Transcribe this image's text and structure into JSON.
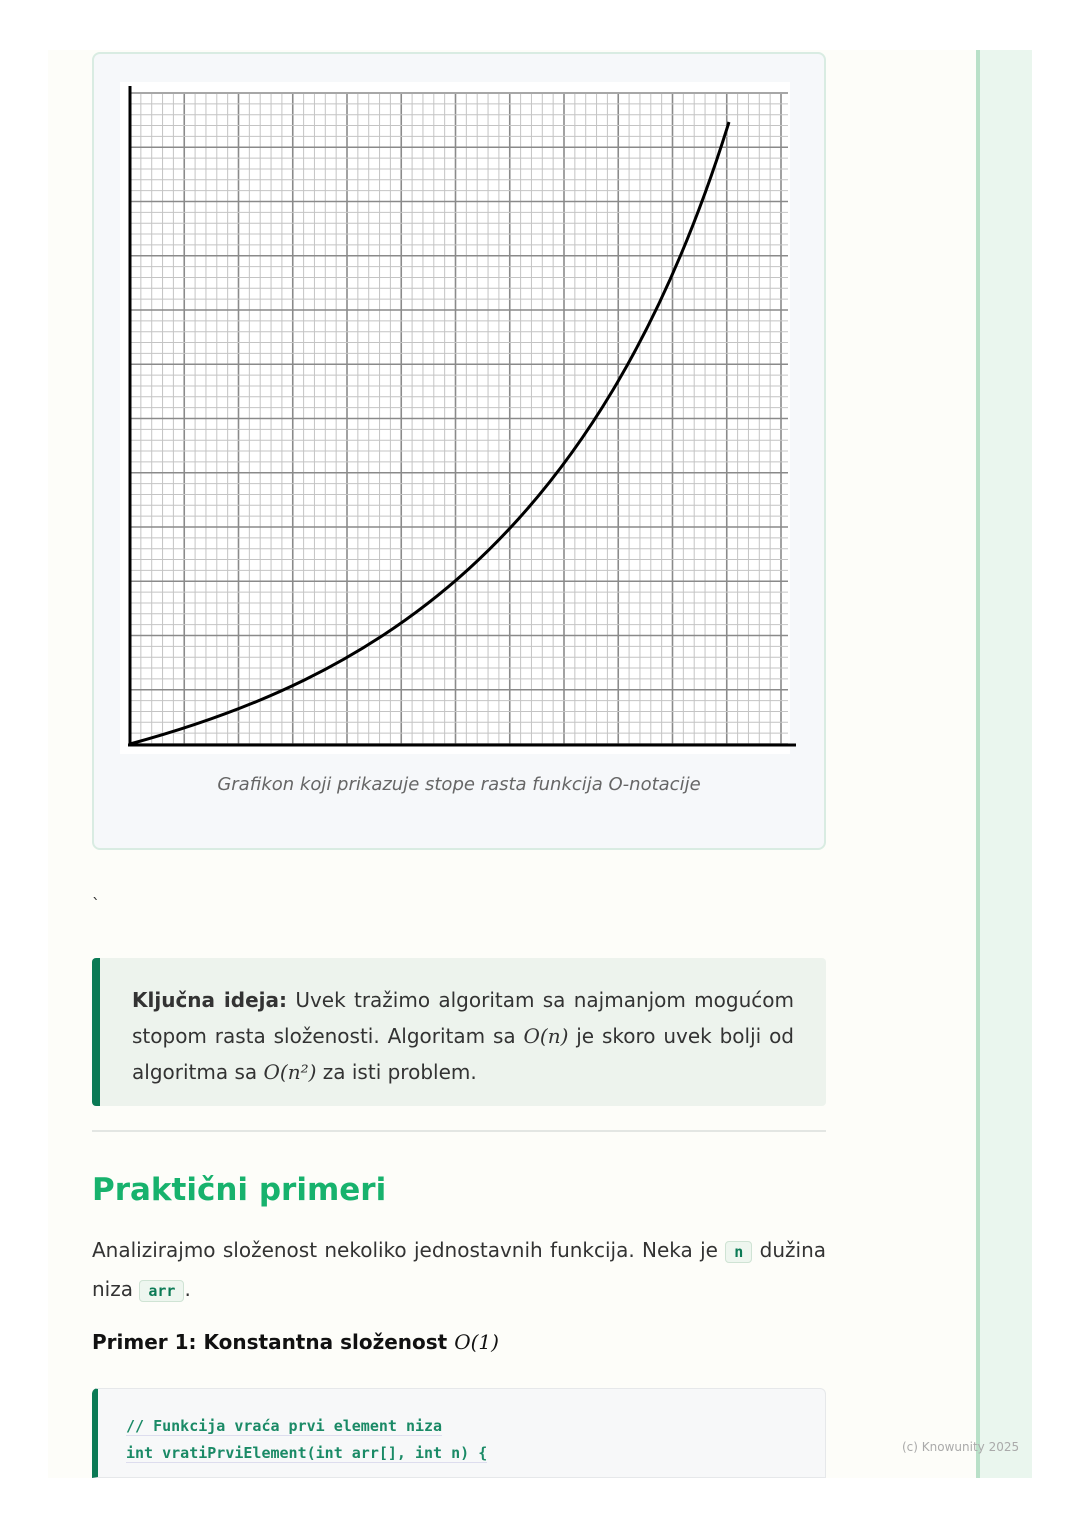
{
  "figure": {
    "caption": "Grafikon koji prikazuje stope rasta funkcija O-notacije"
  },
  "stray_mark": "`",
  "callout": {
    "bold": "Ključna ideja:",
    "text1": " Uvek tražimo algoritam sa najmanjom mogućom stopom rasta složenosti. Algoritam sa ",
    "math1": "O(n)",
    "text2": " je skoro uvek bolji od algoritma sa ",
    "math2": "O(n²)",
    "text3": " za isti problem."
  },
  "section": {
    "title": "Praktični primeri",
    "intro1": "Analizirajmo složenost nekoliko jednostavnih funkcija. Neka je ",
    "code_n": "n",
    "intro2": " dužina niza ",
    "code_arr": "arr",
    "intro3": "."
  },
  "example1": {
    "title": "Primer 1: Konstantna složenost ",
    "math": "O(1)",
    "code": [
      "// Funkcija vraća prvi element niza",
      "int vratiPrviElement(int arr[], int n) {"
    ]
  },
  "footer": "(c) Knowunity 2025",
  "colors": {
    "accent": "#17b26d",
    "dark_accent": "#0b7a55"
  }
}
